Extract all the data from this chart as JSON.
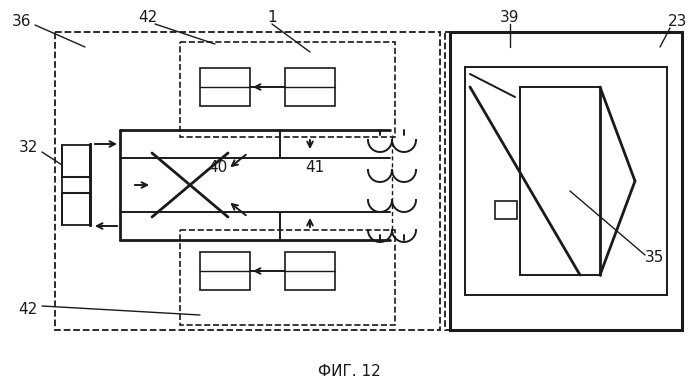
{
  "title": "ФИГ. 12",
  "bg_color": "#ffffff",
  "line_color": "#1a1a1a",
  "figsize": [
    6.99,
    3.9
  ],
  "dpi": 100
}
